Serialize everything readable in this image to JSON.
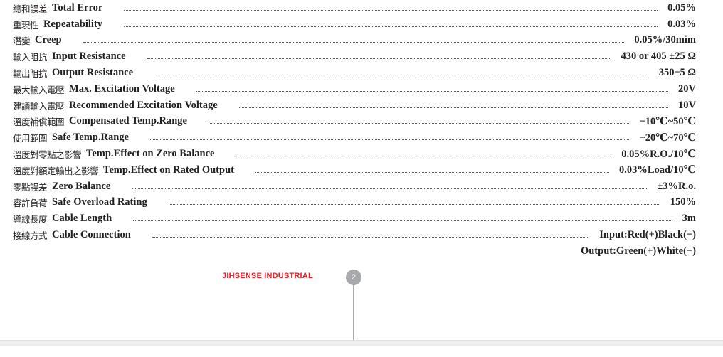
{
  "specs": [
    {
      "zh": "總和誤差",
      "en": "Total Error",
      "value": "0.05%"
    },
    {
      "zh": "重現性",
      "en": "Repeatability",
      "value": "0.03%"
    },
    {
      "zh": "潛變",
      "en": "Creep",
      "value": "0.05%/30mim"
    },
    {
      "zh": "輸入阻抗",
      "en": "Input Resistance",
      "value": "430 or 405 ±25 Ω"
    },
    {
      "zh": "輸出阻抗",
      "en": "Output Resistance",
      "value": "350±5 Ω"
    },
    {
      "zh": "最大輸入電壓",
      "en": "Max. Excitation Voltage",
      "value": "20V"
    },
    {
      "zh": "建議輸入電壓",
      "en": "Recommended Excitation Voltage",
      "value": "10V"
    },
    {
      "zh": "溫度補償範圍",
      "en": "Compensated Temp.Range",
      "value": "−10℃~50℃"
    },
    {
      "zh": "使用範圍",
      "en": "Safe Temp.Range",
      "value": "−20℃~70℃"
    },
    {
      "zh": "溫度對零點之影響",
      "en": "Temp.Effect on Zero Balance",
      "value": "0.05%R.O./10℃"
    },
    {
      "zh": "溫度對額定輸出之影響",
      "en": "Temp.Effect on Rated Output",
      "value": "0.03%Load/10℃"
    },
    {
      "zh": "零點誤差",
      "en": "Zero Balance",
      "value": "±3%R.o."
    },
    {
      "zh": "容許負荷",
      "en": "Safe Overload Rating",
      "value": "150%"
    },
    {
      "zh": "導線長度",
      "en": "Cable Length",
      "value": "3m"
    },
    {
      "zh": "接線方式",
      "en": "Cable Connection",
      "value": "Input:Red(+)Black(−)"
    }
  ],
  "cable_connection_line2": "Output:Green(+)White(−)",
  "footer": {
    "brand": "JIHSENSE INDUSTRIAL",
    "page_number": "2",
    "brand_color": "#ed1c24"
  }
}
